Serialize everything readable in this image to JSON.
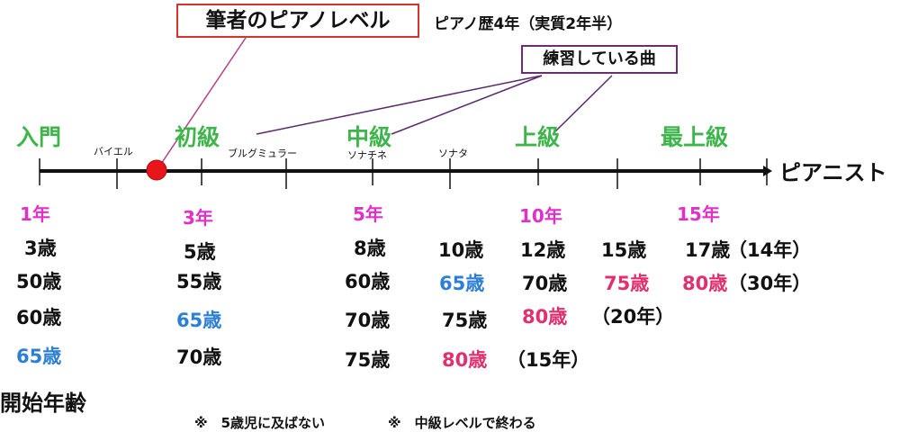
{
  "callouts": {
    "main": "筆者のピアノレベル",
    "history": "ピアノ歴4年（実質2年半）",
    "pieces": "練習している曲"
  },
  "levels": [
    "入門",
    "初級",
    "中級",
    "上級",
    "最上級"
  ],
  "milestones": [
    "バイエル",
    "ブルグミュラー",
    "ソナチネ",
    "ソナタ"
  ],
  "end_label": "ピアニスト",
  "years": [
    "1年",
    "3年",
    "5年",
    "10年",
    "15年"
  ],
  "ages": {
    "c1": [
      "3歳",
      "50歳",
      "60歳",
      "65歳"
    ],
    "c2": [
      "5歳",
      "55歳",
      "65歳",
      "70歳"
    ],
    "c3": [
      "8歳",
      "60歳",
      "70歳",
      "75歳"
    ],
    "c4": [
      "10歳",
      "65歳",
      "75歳",
      "80歳"
    ],
    "c5": [
      "12歳",
      "70歳",
      "80歳"
    ],
    "c6": [
      "15歳",
      "75歳"
    ],
    "c7": [
      "17歳",
      "80歳"
    ]
  },
  "parens": [
    "（15年）",
    "（20年）",
    "（14年）",
    "（30年）"
  ],
  "title": "開始年齢",
  "notes": [
    "※　5歳児に及ばない",
    "※　中級レベルで終わる"
  ],
  "colors": {
    "level": "#3eb54a",
    "years": "#e030c7",
    "blue": "#2b7fd4",
    "pink": "#e0306e",
    "marker": "#e8151b"
  }
}
